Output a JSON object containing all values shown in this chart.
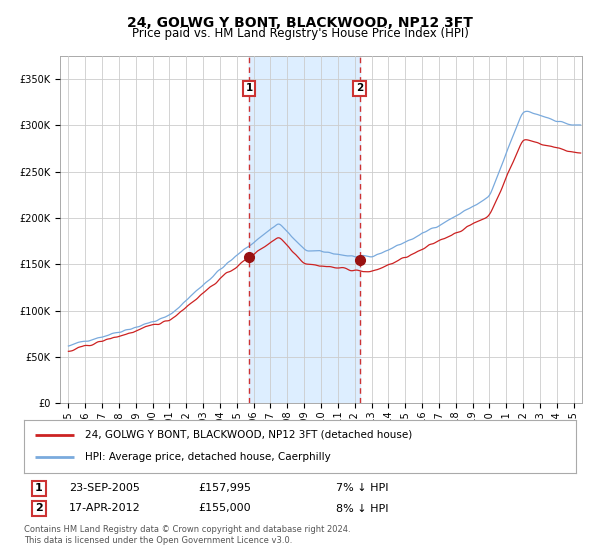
{
  "title": "24, GOLWG Y BONT, BLACKWOOD, NP12 3FT",
  "subtitle": "Price paid vs. HM Land Registry's House Price Index (HPI)",
  "legend_line1": "24, GOLWG Y BONT, BLACKWOOD, NP12 3FT (detached house)",
  "legend_line2": "HPI: Average price, detached house, Caerphilly",
  "footnote": "Contains HM Land Registry data © Crown copyright and database right 2024.\nThis data is licensed under the Open Government Licence v3.0.",
  "sale1_date_label": "23-SEP-2005",
  "sale1_price_label": "£157,995",
  "sale1_hpi_label": "7% ↓ HPI",
  "sale2_date_label": "17-APR-2012",
  "sale2_price_label": "£155,000",
  "sale2_hpi_label": "8% ↓ HPI",
  "sale1_x": 2005.73,
  "sale1_y": 157995,
  "sale2_x": 2012.29,
  "sale2_y": 155000,
  "hpi_color": "#7aaadd",
  "price_color": "#cc2222",
  "dot_color": "#991111",
  "vline_color": "#cc3333",
  "shade_color": "#ddeeff",
  "background_color": "#ffffff",
  "grid_color": "#cccccc",
  "ylim": [
    0,
    375000
  ],
  "xlim_start": 1994.5,
  "xlim_end": 2025.5,
  "title_fontsize": 10,
  "subtitle_fontsize": 8.5,
  "tick_fontsize": 7,
  "legend_fontsize": 7.5,
  "table_fontsize": 8
}
